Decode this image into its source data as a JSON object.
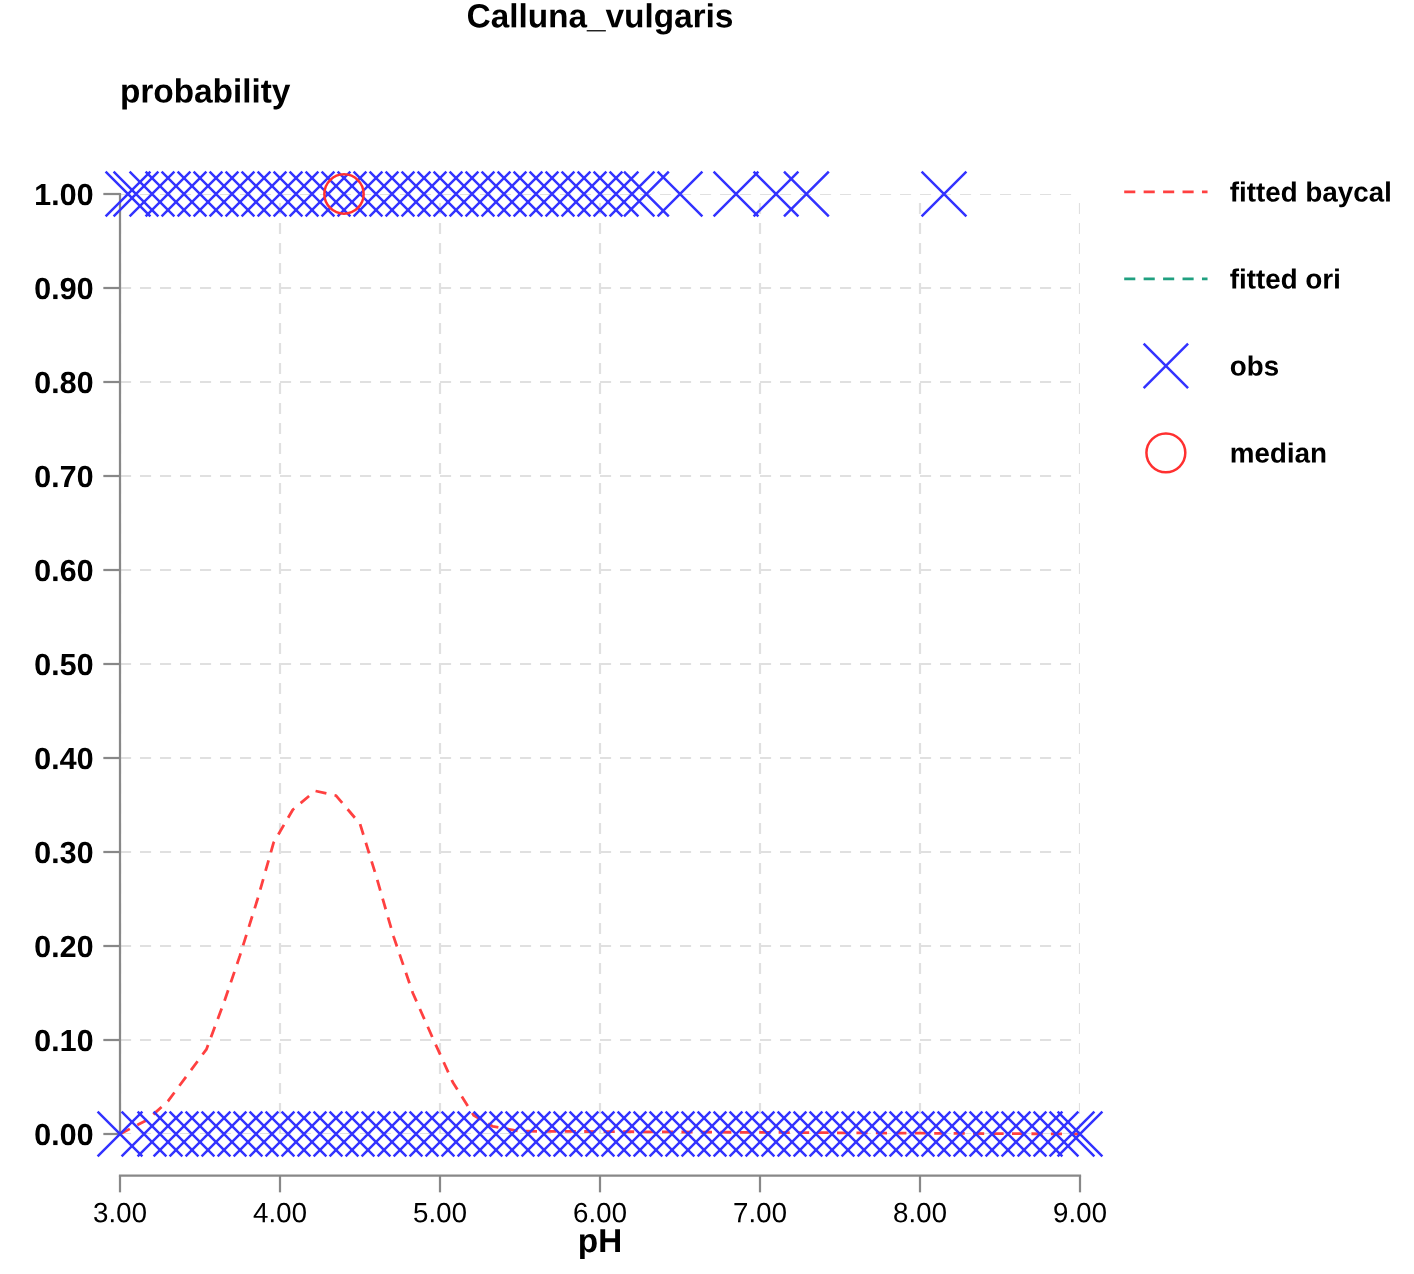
{
  "chart_data": {
    "type": "scatter",
    "title": "Calluna_vulgaris",
    "xlabel": "pH",
    "ylabel": "probability",
    "xlim": [
      3,
      9
    ],
    "ylim": [
      0,
      1
    ],
    "xticks": [
      {
        "value": 3,
        "label": "3.00"
      },
      {
        "value": 4,
        "label": "4.00"
      },
      {
        "value": 5,
        "label": "5.00"
      },
      {
        "value": 6,
        "label": "6.00"
      },
      {
        "value": 7,
        "label": "7.00"
      },
      {
        "value": 8,
        "label": "8.00"
      },
      {
        "value": 9,
        "label": "9.00"
      }
    ],
    "yticks": [
      {
        "value": 0,
        "label": "0.00"
      },
      {
        "value": 0.1,
        "label": "0.10"
      },
      {
        "value": 0.2,
        "label": "0.20"
      },
      {
        "value": 0.3,
        "label": "0.30"
      },
      {
        "value": 0.4,
        "label": "0.40"
      },
      {
        "value": 0.5,
        "label": "0.50"
      },
      {
        "value": 0.6,
        "label": "0.60"
      },
      {
        "value": 0.7,
        "label": "0.70"
      },
      {
        "value": 0.8,
        "label": "0.80"
      },
      {
        "value": 0.9,
        "label": "0.90"
      },
      {
        "value": 1,
        "label": "1.00"
      }
    ],
    "grid": true,
    "legend": "top right",
    "series": [
      {
        "name": "fitted baycal",
        "type": "line",
        "line_style": "dashed",
        "marker": "none",
        "color": "#ff4040",
        "x": [
          3.0,
          3.17,
          3.3,
          3.54,
          3.65,
          3.75,
          3.86,
          3.96,
          4.08,
          4.22,
          4.35,
          4.5,
          4.6,
          4.71,
          4.83,
          4.96,
          5.08,
          5.21,
          5.33,
          5.5,
          9.0
        ],
        "values": [
          0.0,
          0.015,
          0.035,
          0.09,
          0.14,
          0.19,
          0.25,
          0.31,
          0.345,
          0.365,
          0.36,
          0.33,
          0.275,
          0.21,
          0.15,
          0.1,
          0.055,
          0.02,
          0.008,
          0.003,
          0.0
        ]
      },
      {
        "name": "fitted ori",
        "type": "line",
        "line_style": "dashed",
        "marker": "none",
        "color": "#20a080",
        "values": [
          null
        ]
      },
      {
        "name": "obs",
        "marker": "cross",
        "color": "#3333ff",
        "x": [
          3.05,
          3.1,
          3.2,
          3.3,
          3.4,
          3.5,
          3.6,
          3.7,
          3.8,
          3.9,
          4.0,
          4.1,
          4.2,
          4.3,
          4.4,
          4.5,
          4.6,
          4.7,
          4.8,
          4.9,
          5.0,
          5.1,
          5.2,
          5.3,
          5.4,
          5.5,
          5.6,
          5.7,
          5.8,
          5.9,
          6.0,
          6.1,
          6.2,
          6.29,
          6.5,
          6.85,
          7.1,
          7.29,
          8.15,
          3.0,
          3.15,
          3.25,
          3.35,
          3.45,
          3.55,
          3.65,
          3.75,
          3.85,
          3.95,
          4.05,
          4.15,
          4.25,
          4.35,
          4.45,
          4.55,
          4.65,
          4.75,
          4.85,
          4.95,
          5.05,
          5.15,
          5.25,
          5.35,
          5.45,
          5.55,
          5.65,
          5.75,
          5.85,
          5.95,
          6.05,
          6.15,
          6.25,
          6.35,
          6.45,
          6.55,
          6.65,
          6.75,
          6.85,
          6.95,
          7.05,
          7.15,
          7.25,
          7.35,
          7.45,
          7.55,
          7.65,
          7.75,
          7.85,
          7.95,
          8.05,
          8.15,
          8.25,
          8.35,
          8.45,
          8.55,
          8.65,
          8.75,
          8.85,
          8.95,
          9.0
        ],
        "values": [
          1,
          1,
          1,
          1,
          1,
          1,
          1,
          1,
          1,
          1,
          1,
          1,
          1,
          1,
          1,
          1,
          1,
          1,
          1,
          1,
          1,
          1,
          1,
          1,
          1,
          1,
          1,
          1,
          1,
          1,
          1,
          1,
          1,
          1,
          1,
          1,
          1,
          1,
          1,
          0,
          0,
          0,
          0,
          0,
          0,
          0,
          0,
          0,
          0,
          0,
          0,
          0,
          0,
          0,
          0,
          0,
          0,
          0,
          0,
          0,
          0,
          0,
          0,
          0,
          0,
          0,
          0,
          0,
          0,
          0,
          0,
          0,
          0,
          0,
          0,
          0,
          0,
          0,
          0,
          0,
          0,
          0,
          0,
          0,
          0,
          0,
          0,
          0,
          0,
          0,
          0,
          0,
          0,
          0,
          0,
          0,
          0,
          0,
          0,
          0
        ]
      },
      {
        "name": "median",
        "marker": "circle",
        "color": "#ff3030",
        "x": [
          4.4
        ],
        "values": [
          1
        ]
      }
    ]
  }
}
